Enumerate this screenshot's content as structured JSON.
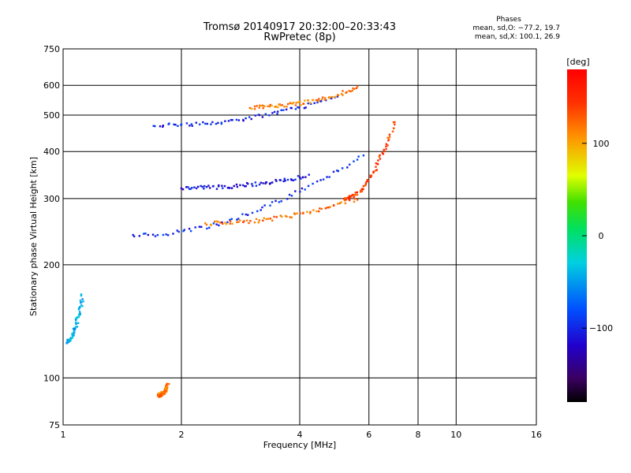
{
  "header": {
    "title_line1": "Tromsø 20140917 20:32:00–20:33:43",
    "title_line2": "RwPretec (8p)",
    "stats_title": "Phases",
    "stats_o": "mean, sd,O: −77.2, 19.7",
    "stats_x": "mean, sd,X: 100.1, 26.9"
  },
  "colorbar": {
    "unit_label": "[deg]",
    "ticks": [
      {
        "label": "100",
        "value": 100
      },
      {
        "label": "0",
        "value": 0
      },
      {
        "label": "−100",
        "value": -100
      }
    ],
    "range": [
      -180,
      180
    ]
  },
  "chart_data": {
    "type": "scatter",
    "xlabel": "Frequency [MHz]",
    "ylabel": "Stationary phase Virtual Height [km]",
    "xscale": "log",
    "yscale": "log",
    "xlim": [
      1,
      16
    ],
    "ylim": [
      75,
      750
    ],
    "xticks": [
      1,
      2,
      4,
      6,
      8,
      10,
      16
    ],
    "yticks": [
      75,
      100,
      200,
      300,
      400,
      500,
      600,
      750
    ],
    "grid": true,
    "color_encoding": "phase (deg)",
    "traces": [
      {
        "x_range": [
          1.5,
          5.8
        ],
        "y_range": [
          240,
          390
        ],
        "phase": -100
      },
      {
        "x_range": [
          2.3,
          5.6
        ],
        "y_range": [
          258,
          300
        ],
        "phase": 120
      },
      {
        "x_range": [
          5.2,
          7.0
        ],
        "y_range": [
          300,
          480
        ],
        "phase": 140
      },
      {
        "x_range": [
          1.7,
          5.0
        ],
        "y_range": [
          470,
          560
        ],
        "phase": -100
      },
      {
        "x_range": [
          3.0,
          5.6
        ],
        "y_range": [
          525,
          590
        ],
        "phase": 115
      },
      {
        "x_range": [
          2.0,
          4.2
        ],
        "y_range": [
          320,
          345
        ],
        "phase": -110
      },
      {
        "x_range": [
          1.02,
          1.12
        ],
        "y_range": [
          125,
          165
        ],
        "phase": -45
      },
      {
        "x_range": [
          1.75,
          1.85
        ],
        "y_range": [
          90,
          96
        ],
        "phase": 120
      }
    ]
  }
}
